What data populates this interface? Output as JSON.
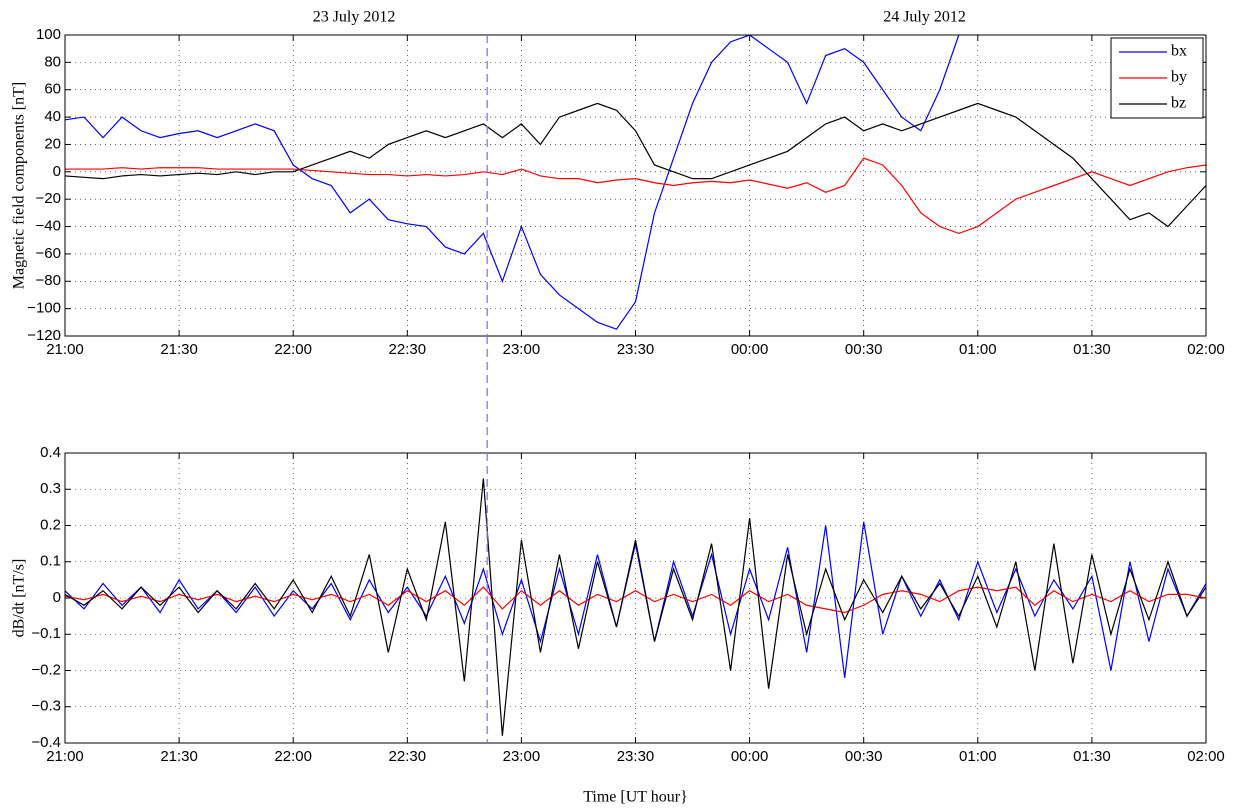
{
  "chart_data": [
    {
      "type": "line",
      "ylabel": "Magnetic field components [nT]",
      "annotations": [
        {
          "text": "23 July 2012",
          "x": 76
        },
        {
          "text": "24 July 2012",
          "x": 226
        }
      ],
      "event_line": {
        "x": 111,
        "color": "#9966ff"
      },
      "x": [
        0,
        5,
        10,
        15,
        20,
        25,
        30,
        35,
        40,
        45,
        50,
        55,
        60,
        65,
        70,
        75,
        80,
        85,
        90,
        95,
        100,
        105,
        110,
        115,
        120,
        125,
        130,
        135,
        140,
        145,
        150,
        155,
        160,
        165,
        170,
        175,
        180,
        185,
        190,
        195,
        200,
        205,
        210,
        215,
        220,
        225,
        230,
        235,
        240,
        245,
        250,
        255,
        260,
        265,
        270,
        275,
        280,
        285,
        290,
        295,
        300
      ],
      "series": [
        {
          "name": "bx",
          "color": "#0000ff",
          "values": [
            38,
            40,
            25,
            40,
            30,
            25,
            28,
            30,
            25,
            30,
            35,
            30,
            5,
            -5,
            -10,
            -30,
            -20,
            -35,
            -38,
            -40,
            -55,
            -60,
            -45,
            -80,
            -40,
            -75,
            -90,
            -100,
            -110,
            -115,
            -95,
            -30,
            10,
            50,
            80,
            95,
            100,
            90,
            80,
            50,
            85,
            90,
            80,
            60,
            40,
            30,
            60,
            100,
            null,
            null,
            null,
            null,
            null,
            null,
            null,
            null,
            null,
            null,
            null,
            null,
            null
          ]
        },
        {
          "name": "by",
          "color": "#ff0000",
          "values": [
            2,
            2,
            2,
            3,
            2,
            3,
            3,
            3,
            2,
            2,
            2,
            2,
            2,
            1,
            0,
            -1,
            -2,
            -2,
            -3,
            -2,
            -3,
            -2,
            0,
            -2,
            2,
            -3,
            -5,
            -5,
            -8,
            -6,
            -5,
            -8,
            -10,
            -8,
            -7,
            -8,
            -6,
            -9,
            -12,
            -8,
            -15,
            -10,
            10,
            5,
            -10,
            -30,
            -40,
            -45,
            -40,
            -30,
            -20,
            -15,
            -10,
            -5,
            0,
            -5,
            -10,
            -5,
            0,
            3,
            5
          ]
        },
        {
          "name": "bz",
          "color": "#000000",
          "values": [
            -3,
            -4,
            -5,
            -3,
            -2,
            -3,
            -2,
            -1,
            -2,
            0,
            -2,
            0,
            0,
            5,
            10,
            15,
            10,
            20,
            25,
            30,
            25,
            30,
            35,
            25,
            35,
            20,
            40,
            45,
            50,
            45,
            30,
            5,
            0,
            -5,
            -5,
            0,
            5,
            10,
            15,
            25,
            35,
            40,
            30,
            35,
            30,
            35,
            40,
            45,
            50,
            45,
            40,
            30,
            20,
            10,
            -5,
            -20,
            -35,
            -30,
            -40,
            -25,
            -10
          ]
        }
      ],
      "xlim": [
        0,
        300
      ],
      "xticks": [
        {
          "value": 0,
          "label": "21:00"
        },
        {
          "value": 30,
          "label": "21:30"
        },
        {
          "value": 60,
          "label": "22:00"
        },
        {
          "value": 90,
          "label": "22:30"
        },
        {
          "value": 120,
          "label": "23:00"
        },
        {
          "value": 150,
          "label": "23:30"
        },
        {
          "value": 180,
          "label": "00:00"
        },
        {
          "value": 210,
          "label": "00:30"
        },
        {
          "value": 240,
          "label": "01:00"
        },
        {
          "value": 270,
          "label": "01:30"
        },
        {
          "value": 300,
          "label": "02:00"
        }
      ],
      "ylim": [
        -120,
        100
      ],
      "yticks": [
        {
          "value": -120,
          "label": "−120"
        },
        {
          "value": -100,
          "label": "−100"
        },
        {
          "value": -80,
          "label": "−80"
        },
        {
          "value": -60,
          "label": "−60"
        },
        {
          "value": -40,
          "label": "−40"
        },
        {
          "value": -20,
          "label": "−20"
        },
        0,
        20,
        40,
        60,
        80,
        100
      ],
      "grid": true,
      "legend": "upper right"
    },
    {
      "type": "line",
      "ylabel": "dB/dt [nT/s]",
      "xlabel": "Time [UT hour}",
      "event_line": {
        "x": 111,
        "color": "#9966ff"
      },
      "x": [
        0,
        5,
        10,
        15,
        20,
        25,
        30,
        35,
        40,
        45,
        50,
        55,
        60,
        65,
        70,
        75,
        80,
        85,
        90,
        95,
        100,
        105,
        110,
        115,
        120,
        125,
        130,
        135,
        140,
        145,
        150,
        155,
        160,
        165,
        170,
        175,
        180,
        185,
        190,
        195,
        200,
        205,
        210,
        215,
        220,
        225,
        230,
        235,
        240,
        245,
        250,
        255,
        260,
        265,
        270,
        275,
        280,
        285,
        290,
        295,
        300
      ],
      "series": [
        {
          "color": "#0000ff",
          "values": [
            0.02,
            -0.03,
            0.04,
            -0.02,
            0.03,
            -0.04,
            0.05,
            -0.03,
            0.02,
            -0.04,
            0.03,
            -0.05,
            0.02,
            -0.03,
            0.04,
            -0.06,
            0.05,
            -0.04,
            0.03,
            -0.05,
            0.06,
            -0.07,
            0.08,
            -0.1,
            0.05,
            -0.12,
            0.08,
            -0.1,
            0.12,
            -0.08,
            0.15,
            -0.12,
            0.1,
            -0.05,
            0.12,
            -0.1,
            0.08,
            -0.06,
            0.14,
            -0.15,
            0.2,
            -0.22,
            0.21,
            -0.1,
            0.06,
            -0.05,
            0.05,
            -0.06,
            0.1,
            -0.04,
            0.08,
            -0.05,
            0.05,
            -0.03,
            0.06,
            -0.2,
            0.1,
            -0.12,
            0.08,
            -0.05,
            0.04
          ]
        },
        {
          "color": "#ff0000",
          "values": [
            0.005,
            -0.005,
            0.01,
            -0.01,
            0.005,
            -0.01,
            0.01,
            -0.005,
            0.01,
            -0.01,
            0.005,
            -0.01,
            0.01,
            -0.005,
            0.01,
            -0.01,
            0.01,
            -0.02,
            0.02,
            -0.01,
            0.02,
            -0.02,
            0.03,
            -0.03,
            0.02,
            -0.02,
            0.02,
            -0.02,
            0.01,
            -0.01,
            0.02,
            -0.01,
            0.01,
            -0.01,
            0.01,
            -0.02,
            0.02,
            -0.01,
            0.01,
            -0.02,
            -0.03,
            -0.04,
            -0.02,
            0.01,
            0.02,
            0.01,
            -0.01,
            0.02,
            0.03,
            0.02,
            0.03,
            -0.02,
            0.02,
            -0.01,
            0.01,
            -0.01,
            0.02,
            -0.01,
            0.01,
            0.01,
            0
          ]
        },
        {
          "color": "#000000",
          "values": [
            0.01,
            -0.02,
            0.02,
            -0.03,
            0.03,
            -0.02,
            0.03,
            -0.04,
            0.02,
            -0.03,
            0.04,
            -0.03,
            0.05,
            -0.04,
            0.06,
            -0.05,
            0.12,
            -0.15,
            0.08,
            -0.06,
            0.21,
            -0.23,
            0.33,
            -0.38,
            0.16,
            -0.15,
            0.12,
            -0.14,
            0.1,
            -0.08,
            0.16,
            -0.12,
            0.08,
            -0.06,
            0.15,
            -0.2,
            0.22,
            -0.25,
            0.12,
            -0.1,
            0.08,
            -0.06,
            0.05,
            -0.04,
            0.06,
            -0.03,
            0.04,
            -0.05,
            0.06,
            -0.08,
            0.1,
            -0.2,
            0.15,
            -0.18,
            0.12,
            -0.1,
            0.08,
            -0.06,
            0.1,
            -0.05,
            0.03
          ]
        }
      ],
      "xlim": [
        0,
        300
      ],
      "xticks": [
        {
          "value": 0,
          "label": "21:00"
        },
        {
          "value": 30,
          "label": "21:30"
        },
        {
          "value": 60,
          "label": "22:00"
        },
        {
          "value": 90,
          "label": "22:30"
        },
        {
          "value": 120,
          "label": "23:00"
        },
        {
          "value": 150,
          "label": "23:30"
        },
        {
          "value": 180,
          "label": "00:00"
        },
        {
          "value": 210,
          "label": "00:30"
        },
        {
          "value": 240,
          "label": "01:00"
        },
        {
          "value": 270,
          "label": "01:30"
        },
        {
          "value": 300,
          "label": "02:00"
        }
      ],
      "ylim": [
        -0.4,
        0.4
      ],
      "yticks": [
        {
          "value": -0.4,
          "label": "−0.4"
        },
        {
          "value": -0.3,
          "label": "−0.3"
        },
        {
          "value": -0.2,
          "label": "−0.2"
        },
        {
          "value": -0.1,
          "label": "−0.1"
        },
        0,
        0.1,
        0.2,
        0.3,
        0.4
      ],
      "grid": true
    }
  ]
}
